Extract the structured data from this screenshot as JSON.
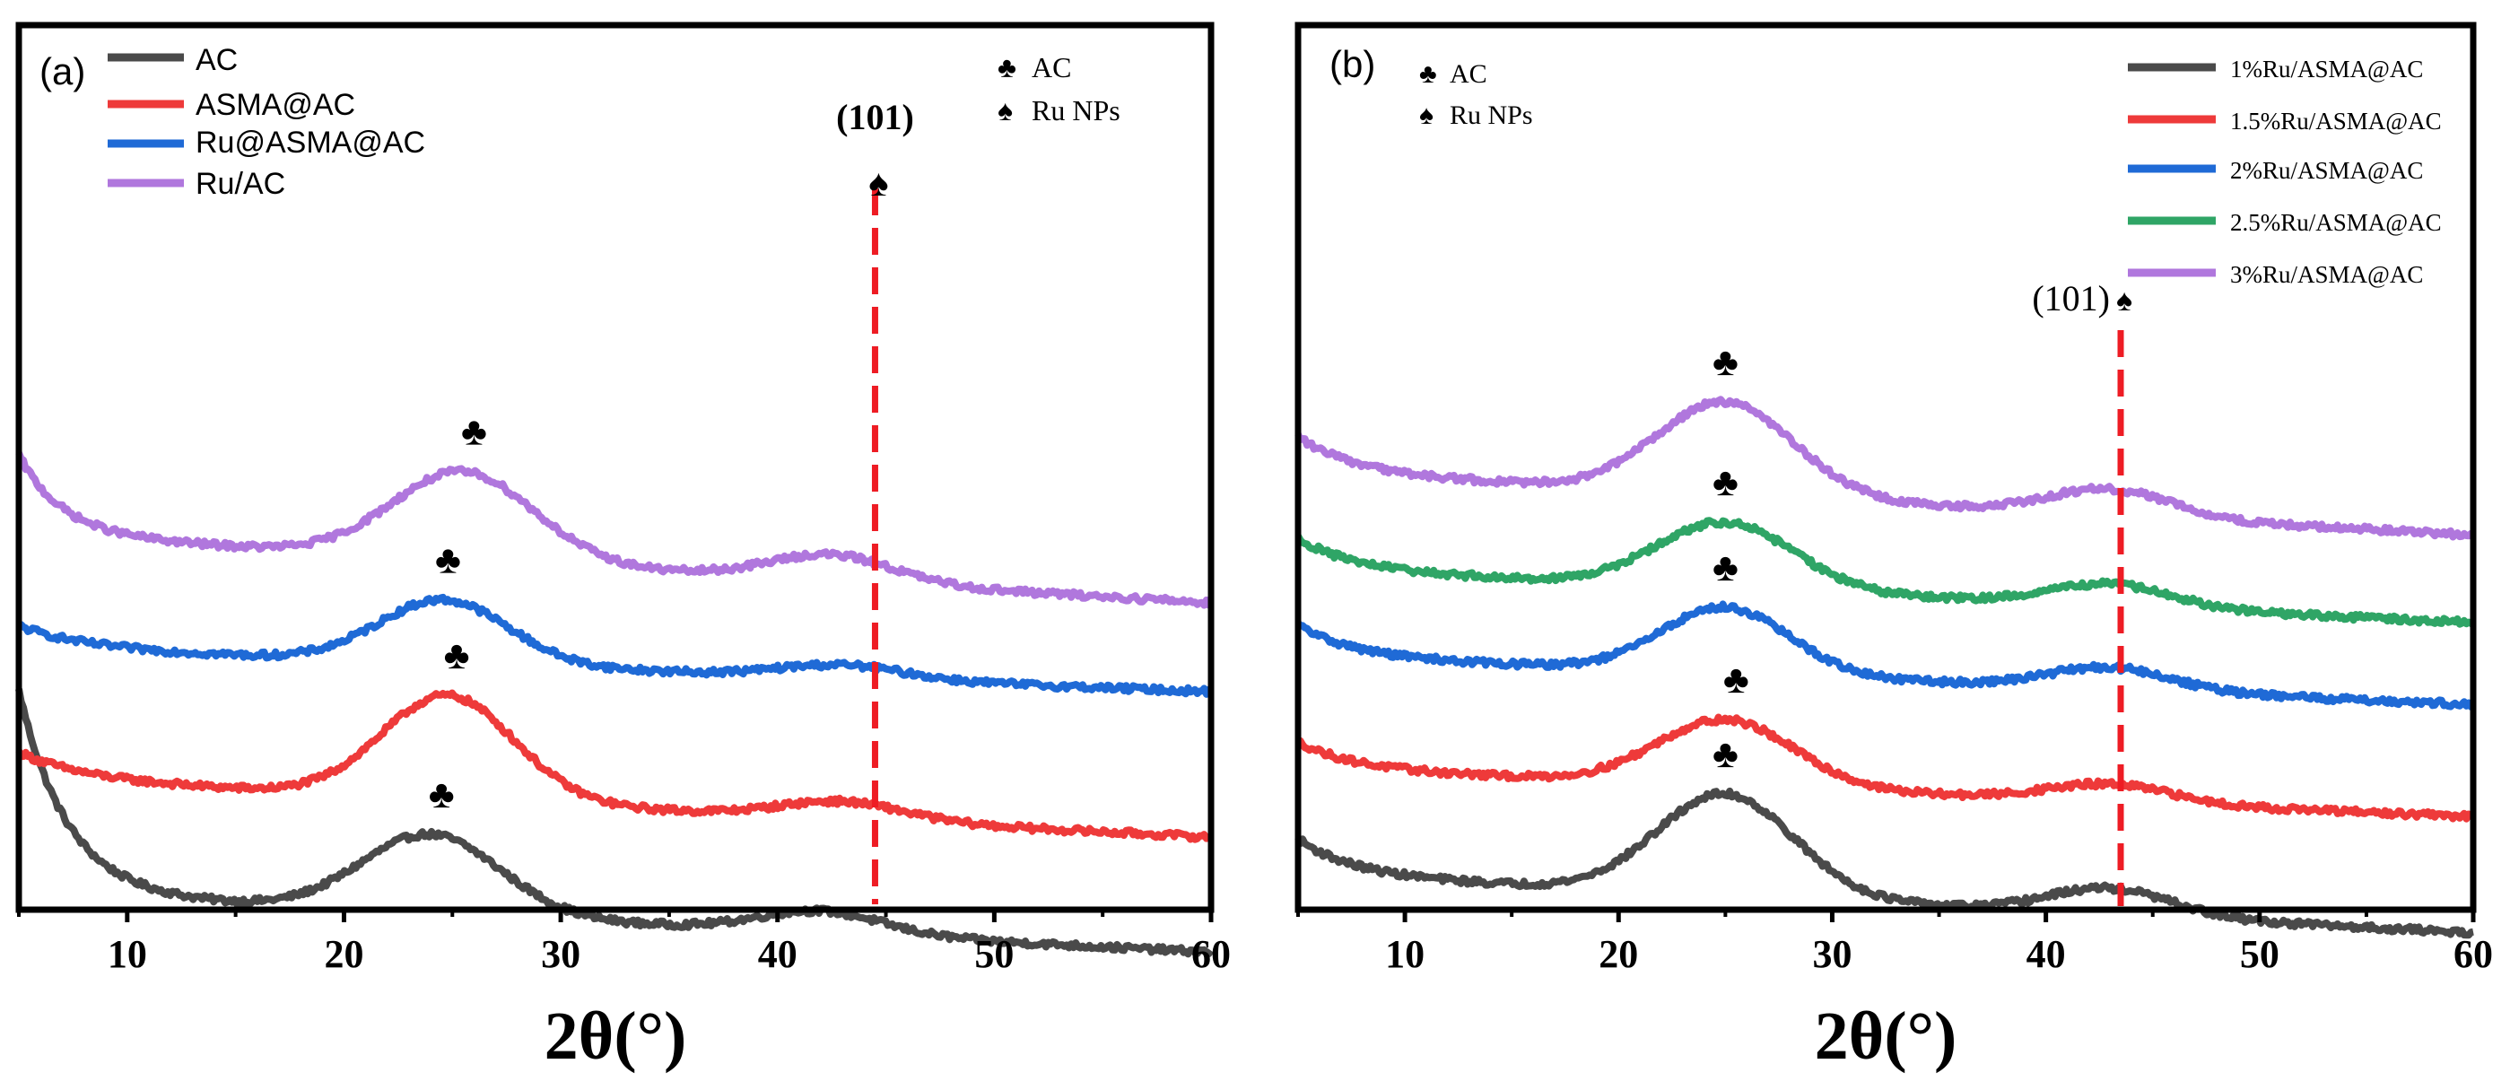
{
  "chart_data": [
    {
      "type": "line",
      "panel_label": "(a)",
      "xlabel": "2θ(°)",
      "ylabel": "",
      "xlim": [
        5,
        60
      ],
      "ylim": [
        0,
        10
      ],
      "xticks": [
        10,
        20,
        30,
        40,
        50,
        60
      ],
      "grid": false,
      "legend_position": "top-left",
      "marker_legend": [
        {
          "symbol": "♣",
          "label": "AC"
        },
        {
          "symbol": "♠",
          "label": "Ru NPs"
        }
      ],
      "reference_line": {
        "x": 44.5,
        "label": "(101)",
        "symbol": "♠",
        "color": "#ee1c24"
      },
      "series": [
        {
          "name": "AC",
          "color": "#4a4a4a",
          "offset": 0.18,
          "peak_center": 24,
          "peak_height": 0.9,
          "peak_width": 4.5,
          "low_angle_height": 2.3,
          "low_angle_decay": 2.2,
          "hump_center": 42,
          "hump_height": 0.25,
          "slope": 0.012,
          "peak_marker": {
            "x": 24.5,
            "symbol": "♣"
          }
        },
        {
          "name": "ASMA@AC",
          "color": "#ee3a3a",
          "offset": 1.48,
          "peak_center": 24.8,
          "peak_height": 1.18,
          "peak_width": 4.3,
          "low_angle_height": 0.3,
          "low_angle_decay": 3,
          "hump_center": 43,
          "hump_height": 0.2,
          "slope": 0.012,
          "peak_marker": {
            "x": 25.2,
            "symbol": "♣"
          }
        },
        {
          "name": "Ru@ASMA@AC",
          "color": "#1f6ad6",
          "offset": 2.96,
          "peak_center": 24.6,
          "peak_height": 0.72,
          "peak_width": 4.2,
          "low_angle_height": 0.25,
          "low_angle_decay": 3,
          "hump_center": 43,
          "hump_height": 0.15,
          "slope": 0.009,
          "peak_marker": {
            "x": 24.8,
            "symbol": "♣"
          }
        },
        {
          "name": "Ru/AC",
          "color": "#b077dd",
          "offset": 4.24,
          "peak_center": 25.5,
          "peak_height": 1.0,
          "peak_width": 4.6,
          "low_angle_height": 0.9,
          "low_angle_decay": 2,
          "hump_center": 42.5,
          "hump_height": 0.3,
          "slope": 0.014,
          "peak_marker": {
            "x": 26,
            "symbol": "♣"
          }
        }
      ]
    },
    {
      "type": "line",
      "panel_label": "(b)",
      "xlabel": "2θ(°)",
      "ylabel": "",
      "xlim": [
        5,
        60
      ],
      "ylim": [
        0,
        10
      ],
      "xticks": [
        10,
        20,
        30,
        40,
        50,
        60
      ],
      "grid": false,
      "legend_position": "top-right",
      "marker_legend": [
        {
          "symbol": "♣",
          "label": "AC"
        },
        {
          "symbol": "♠",
          "label": "Ru NPs"
        }
      ],
      "reference_line": {
        "x": 43.5,
        "label": "(101)",
        "symbol": "♠",
        "color": "#ee1c24"
      },
      "series": [
        {
          "name": "1%Ru/ASMA@AC",
          "color": "#4a4a4a",
          "offset": 0.4,
          "peak_center": 25,
          "peak_height": 1.15,
          "peak_width": 4.5,
          "low_angle_height": 0.4,
          "low_angle_decay": 2.5,
          "hump_center": 43,
          "hump_height": 0.3,
          "slope": 0.012,
          "peak_marker": {
            "x": 25,
            "symbol": "♣"
          }
        },
        {
          "name": "1.5%Ru/ASMA@AC",
          "color": "#ee3a3a",
          "offset": 1.6,
          "peak_center": 25,
          "peak_height": 0.75,
          "peak_width": 4.5,
          "low_angle_height": 0.3,
          "low_angle_decay": 2.5,
          "hump_center": 43,
          "hump_height": 0.2,
          "slope": 0.01,
          "peak_marker": {
            "x": 25.5,
            "symbol": "♣"
          }
        },
        {
          "name": "2%Ru/ASMA@AC",
          "color": "#1f6ad6",
          "offset": 2.87,
          "peak_center": 25,
          "peak_height": 0.75,
          "peak_width": 4.2,
          "low_angle_height": 0.35,
          "low_angle_decay": 2.5,
          "hump_center": 43,
          "hump_height": 0.25,
          "slope": 0.01,
          "peak_marker": {
            "x": 25,
            "symbol": "♣"
          }
        },
        {
          "name": "2.5%Ru/ASMA@AC",
          "color": "#2fa566",
          "offset": 3.85,
          "peak_center": 25,
          "peak_height": 0.75,
          "peak_width": 4.5,
          "low_angle_height": 0.35,
          "low_angle_decay": 2.5,
          "hump_center": 43,
          "hump_height": 0.25,
          "slope": 0.011,
          "peak_marker": {
            "x": 25,
            "symbol": "♣"
          }
        },
        {
          "name": "3%Ru/ASMA@AC",
          "color": "#b077dd",
          "offset": 4.95,
          "peak_center": 25,
          "peak_height": 1.05,
          "peak_width": 4.5,
          "low_angle_height": 0.4,
          "low_angle_decay": 2.5,
          "hump_center": 43,
          "hump_height": 0.3,
          "slope": 0.013,
          "peak_marker": {
            "x": 25,
            "symbol": "♣"
          }
        }
      ]
    }
  ]
}
